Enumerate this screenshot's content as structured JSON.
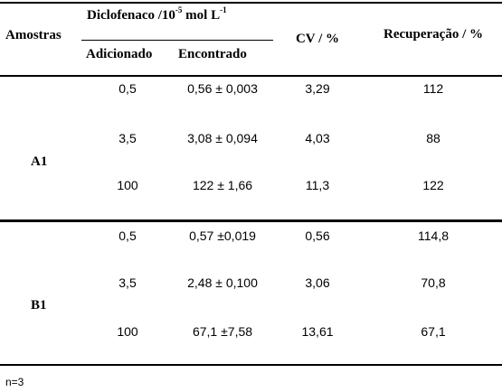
{
  "table": {
    "header": {
      "samples": "Amostras",
      "group_label_pre": "Diclofenaco /10",
      "group_label_exp": "-5",
      "group_label_mid": " mol L",
      "group_label_exp2": "-1",
      "added": "Adicionado",
      "found": "Encontrado",
      "cv": "CV / %",
      "recovery": "Recuperação / %"
    },
    "groups": [
      {
        "sample": "A1",
        "rows": [
          {
            "added": "0,5",
            "found": "0,56 ± 0,003",
            "cv": "3,29",
            "recovery": "112"
          },
          {
            "added": "3,5",
            "found": "3,08 ± 0,094",
            "cv": "4,03",
            "recovery": "88"
          },
          {
            "added": "100",
            "found": "122 ± 1,66",
            "cv": "11,3",
            "recovery": "122"
          }
        ]
      },
      {
        "sample": "B1",
        "rows": [
          {
            "added": "0,5",
            "found": "0,57 ±0,019",
            "cv": "0,56",
            "recovery": "114,8"
          },
          {
            "added": "3,5",
            "found": "2,48 ± 0,100",
            "cv": "3,06",
            "recovery": "70,8"
          },
          {
            "added": "100",
            "found": "67,1 ±7,58",
            "cv": "13,61",
            "recovery": "67,1"
          }
        ]
      }
    ],
    "footnote": "n=3"
  }
}
